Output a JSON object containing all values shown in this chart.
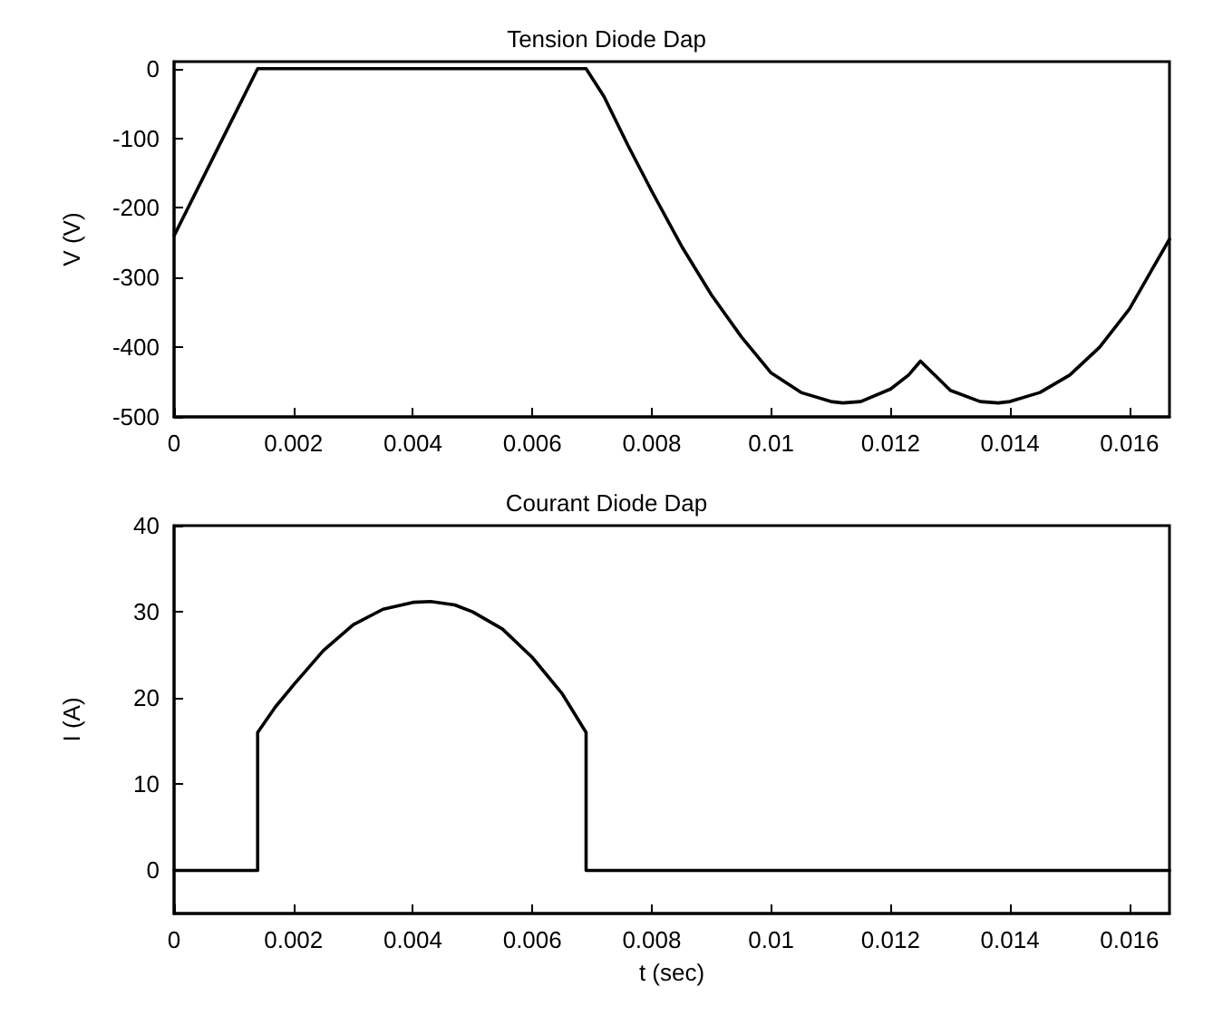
{
  "chart_data": [
    {
      "type": "line",
      "title": "Tension Diode Dap",
      "ylabel": "V (V)",
      "xlim": [
        0,
        0.01667
      ],
      "ylim": [
        -500,
        10
      ],
      "xticks": [
        0,
        0.002,
        0.004,
        0.006,
        0.008,
        0.01,
        0.012,
        0.014,
        0.016
      ],
      "yticks": [
        -500,
        -400,
        -300,
        -200,
        -100,
        0
      ],
      "grid": false,
      "marker": "none",
      "line_style": "solid",
      "series": [
        {
          "color": "#000000",
          "x": [
            0,
            0.0007,
            0.0014,
            0.0069,
            0.0072,
            0.0076,
            0.008,
            0.0085,
            0.009,
            0.0095,
            0.01,
            0.0105,
            0.011,
            0.0112,
            0.0115,
            0.012,
            0.0123,
            0.0125,
            0.0128,
            0.013,
            0.0135,
            0.0138,
            0.014,
            0.0145,
            0.015,
            0.0155,
            0.016,
            0.0163,
            0.01667
          ],
          "values": [
            -240,
            -120,
            0,
            0,
            -40,
            -110,
            -176,
            -255,
            -325,
            -385,
            -437,
            -465,
            -478,
            -480,
            -478,
            -460,
            -440,
            -420,
            -445,
            -462,
            -478,
            -480,
            -478,
            -465,
            -440,
            -400,
            -345,
            -300,
            -245
          ]
        }
      ]
    },
    {
      "type": "line",
      "title": "Courant Diode Dap",
      "xlabel": "t (sec)",
      "ylabel": "I (A)",
      "xlim": [
        0,
        0.01667
      ],
      "ylim": [
        -5,
        40
      ],
      "xticks": [
        0,
        0.002,
        0.004,
        0.006,
        0.008,
        0.01,
        0.012,
        0.014,
        0.016
      ],
      "yticks": [
        0,
        10,
        20,
        30,
        40
      ],
      "grid": false,
      "marker": "none",
      "line_style": "solid",
      "series": [
        {
          "color": "#000000",
          "x": [
            0,
            0.0014,
            0.0014,
            0.0017,
            0.002,
            0.0025,
            0.003,
            0.0035,
            0.004,
            0.0043,
            0.0047,
            0.005,
            0.0055,
            0.006,
            0.0065,
            0.0069,
            0.0069,
            0.01667
          ],
          "values": [
            0,
            0,
            16,
            19,
            21.5,
            25.5,
            28.5,
            30.3,
            31.1,
            31.2,
            30.8,
            30,
            28,
            24.7,
            20.5,
            16,
            0,
            0
          ]
        }
      ]
    }
  ]
}
